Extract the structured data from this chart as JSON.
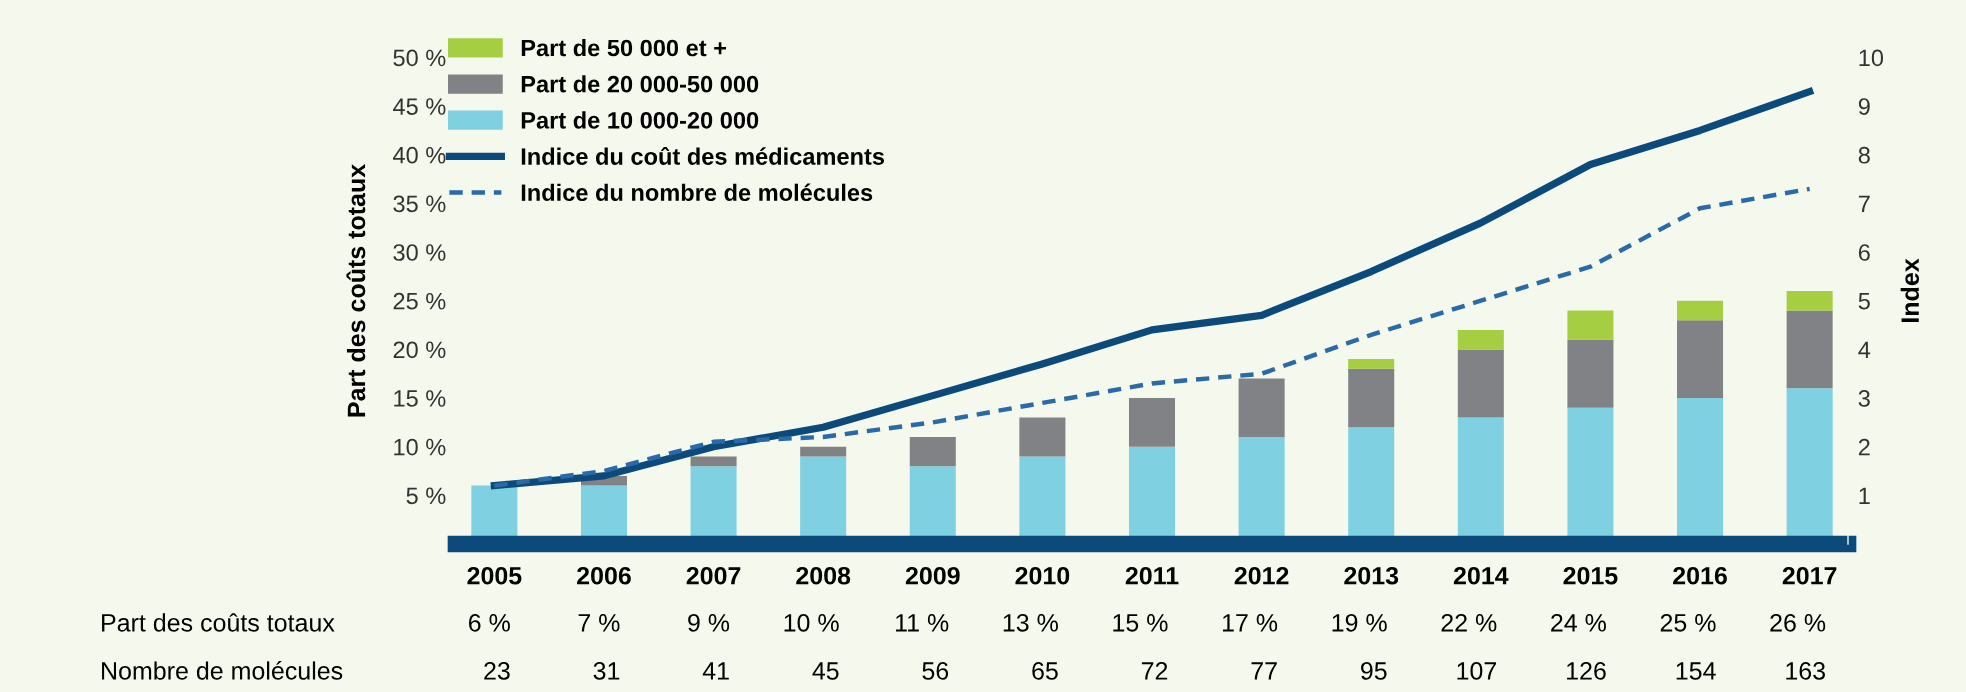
{
  "chart_data": {
    "type": "bar",
    "stacked": true,
    "ylabel": "Part des coûts totaux",
    "y2label": "Index",
    "categories": [
      "2005",
      "2006",
      "2007",
      "2008",
      "2009",
      "2010",
      "2011",
      "2012",
      "2013",
      "2014",
      "2015",
      "2016",
      "2017"
    ],
    "series": [
      {
        "name": "Part de 10 000-20 000",
        "color": "#7fd0e0",
        "values": [
          6,
          6,
          8,
          9,
          8,
          9,
          10,
          11,
          12,
          13,
          14,
          15,
          16
        ]
      },
      {
        "name": "Part de 20 000-50 000",
        "color": "#808285",
        "values": [
          0,
          1,
          1,
          1,
          3,
          4,
          5,
          6,
          6,
          7,
          7,
          8,
          8
        ]
      },
      {
        "name": "Part de 50 000 et +",
        "color": "#a6ce42",
        "values": [
          0,
          0,
          0,
          0,
          0,
          0,
          0,
          0,
          1,
          2,
          3,
          2,
          2
        ]
      },
      {
        "name": "Indice du coût des médicaments",
        "type": "line",
        "axis": "y2",
        "color": "#0b4a7a",
        "line_style": "solid",
        "values": [
          1.2,
          1.4,
          2.0,
          2.4,
          3.05,
          3.7,
          4.4,
          4.7,
          5.6,
          6.6,
          7.8,
          8.5,
          9.3
        ]
      },
      {
        "name": "Indice du nombre de molécules",
        "type": "line",
        "axis": "y2",
        "color": "#2a6aa8",
        "line_style": "dashed",
        "values": [
          1.2,
          1.5,
          2.1,
          2.2,
          2.5,
          2.9,
          3.3,
          3.5,
          4.3,
          5.0,
          5.7,
          6.9,
          7.3
        ]
      }
    ],
    "totals": [
      "6 %",
      "7 %",
      "9 %",
      "10 %",
      "11 %",
      "13 %",
      "15 %",
      "17 %",
      "19 %",
      "22 %",
      "24 %",
      "25 %",
      "26 %"
    ],
    "annotations": [
      "Part des coûts totaux",
      "Nombre de molécules",
      "23",
      "31",
      "41",
      "45",
      "56",
      "65",
      "72",
      "77",
      "95",
      "107",
      "126",
      "154",
      "163"
    ],
    "ylim": [
      0,
      52
    ],
    "yticks": [
      {
        "value": 5,
        "label": "5 %"
      },
      {
        "value": 10,
        "label": "10 %"
      },
      {
        "value": 15,
        "label": "15 %"
      },
      {
        "value": 20,
        "label": "20 %"
      },
      {
        "value": 25,
        "label": "25 %"
      },
      {
        "value": 30,
        "label": "30 %"
      },
      {
        "value": 35,
        "label": "35 %"
      },
      {
        "value": 40,
        "label": "40 %"
      },
      {
        "value": 45,
        "label": "45 %"
      },
      {
        "value": 50,
        "label": "50 %"
      }
    ],
    "y2lim": [
      0,
      10.4
    ],
    "y2ticks": [
      1,
      2,
      3,
      4,
      5,
      6,
      7,
      8,
      9,
      10
    ],
    "grid": false,
    "legend": "top left"
  }
}
